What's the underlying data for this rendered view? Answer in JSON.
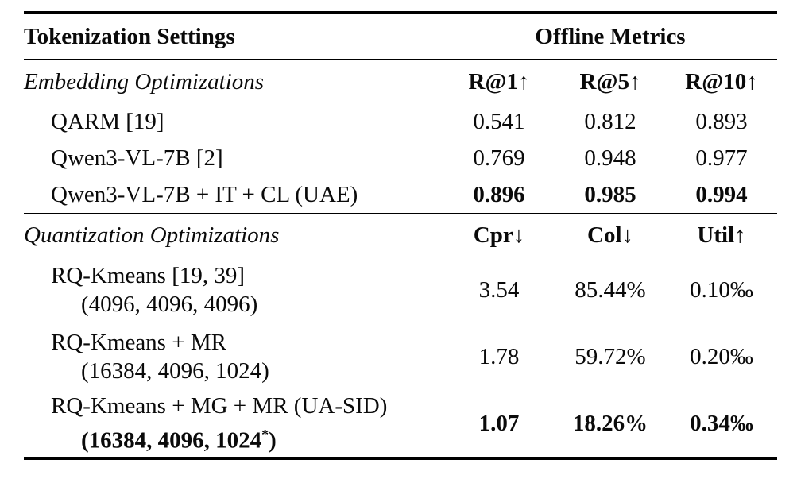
{
  "table": {
    "header": {
      "left": "Tokenization Settings",
      "right": "Offline Metrics"
    },
    "sections": [
      {
        "name": "Embedding Optimizations",
        "metric_headers": [
          "R@1↑",
          "R@5↑",
          "R@10↑"
        ],
        "rows": [
          {
            "label": "QARM [19]",
            "values": [
              "0.541",
              "0.812",
              "0.893"
            ]
          },
          {
            "label": "Qwen3-VL-7B [2]",
            "values": [
              "0.769",
              "0.948",
              "0.977"
            ]
          },
          {
            "label": "Qwen3-VL-7B + IT + CL (UAE)",
            "values": [
              "0.896",
              "0.985",
              "0.994"
            ]
          }
        ]
      },
      {
        "name": "Quantization Optimizations",
        "metric_headers": [
          "Cpr↓",
          "Col↓",
          "Util↑"
        ],
        "rows": [
          {
            "label": "RQ-Kmeans [19, 39]",
            "sublabel": "(4096, 4096, 4096)",
            "values": [
              "3.54",
              "85.44%",
              "0.10‰"
            ]
          },
          {
            "label": "RQ-Kmeans + MR",
            "sublabel": "(16384, 4096, 1024)",
            "values": [
              "1.78",
              "59.72%",
              "0.20‰"
            ]
          },
          {
            "label": "RQ-Kmeans + MG + MR (UA-SID)",
            "sublabel_pre": "(16384, 4096, 1024",
            "sublabel_sup": "*",
            "sublabel_post": ")",
            "values": [
              "1.07",
              "18.26%",
              "0.34‰"
            ]
          }
        ]
      }
    ],
    "colors": {
      "text": "#0a0a0a",
      "rule": "#000000",
      "background": "#ffffff"
    }
  }
}
